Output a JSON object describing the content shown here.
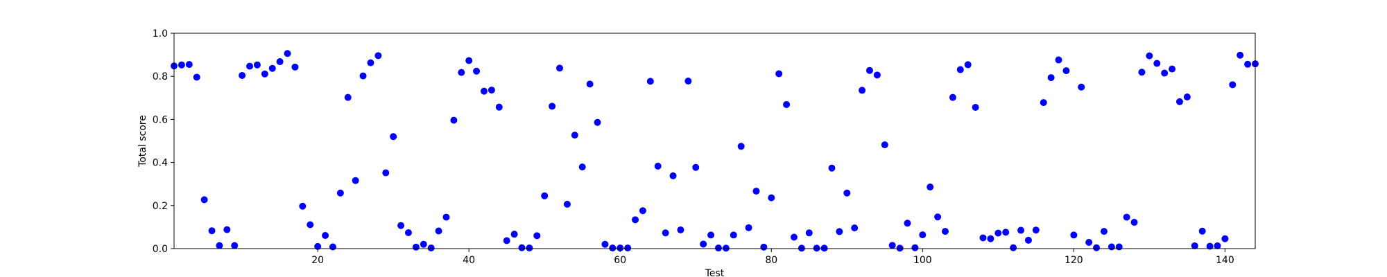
{
  "chart_data": {
    "type": "scatter",
    "title": "",
    "xlabel": "Test",
    "ylabel": "Total score",
    "xlim": [
      1,
      144
    ],
    "ylim": [
      0.0,
      1.0
    ],
    "x_ticks": [
      20,
      40,
      60,
      80,
      100,
      120,
      140
    ],
    "y_ticks": [
      0.0,
      0.2,
      0.4,
      0.6,
      0.8,
      1.0
    ],
    "x_tick_labels": [
      "20",
      "40",
      "60",
      "80",
      "100",
      "120",
      "140"
    ],
    "y_tick_labels": [
      "0.0",
      "0.2",
      "0.4",
      "0.6",
      "0.8",
      "1.0"
    ],
    "grid": false,
    "marker_color": "#0000ff",
    "series": [
      {
        "x": [
          1,
          2,
          3,
          4,
          5,
          6,
          7,
          8,
          9,
          10,
          11,
          12,
          13,
          14,
          15,
          16,
          17,
          18,
          19,
          20,
          21,
          22,
          23,
          24,
          25,
          26,
          27,
          28,
          29,
          30,
          31,
          32,
          33,
          34,
          35,
          36,
          37,
          38,
          39,
          40,
          41,
          42,
          43,
          44,
          45,
          46,
          47,
          48,
          49,
          50,
          51,
          52,
          53,
          54,
          55,
          56,
          57,
          58,
          59,
          60,
          61,
          62,
          63,
          64,
          65,
          66,
          67,
          68,
          69,
          70,
          71,
          72,
          73,
          74,
          75,
          76,
          77,
          78,
          79,
          80,
          81,
          82,
          83,
          84,
          85,
          86,
          87,
          88,
          89,
          90,
          91,
          92,
          93,
          94,
          95,
          96,
          97,
          98,
          99,
          100,
          101,
          102,
          103,
          104,
          105,
          106,
          107,
          108,
          109,
          110,
          111,
          112,
          113,
          114,
          115,
          116,
          117,
          118,
          119,
          120,
          121,
          122,
          123,
          124,
          125,
          126,
          127,
          128,
          129,
          130,
          131,
          132,
          133,
          134,
          135,
          136,
          137,
          138,
          139,
          140,
          141,
          142,
          143,
          144
        ],
        "y": [
          0.848,
          0.853,
          0.855,
          0.796,
          0.227,
          0.083,
          0.014,
          0.088,
          0.014,
          0.804,
          0.847,
          0.853,
          0.811,
          0.837,
          0.868,
          0.906,
          0.843,
          0.197,
          0.111,
          0.01,
          0.061,
          0.008,
          0.258,
          0.702,
          0.316,
          0.802,
          0.863,
          0.896,
          0.352,
          0.52,
          0.107,
          0.074,
          0.007,
          0.02,
          0.003,
          0.082,
          0.146,
          0.596,
          0.818,
          0.873,
          0.824,
          0.731,
          0.736,
          0.657,
          0.037,
          0.067,
          0.004,
          0.003,
          0.06,
          0.245,
          0.661,
          0.838,
          0.206,
          0.527,
          0.379,
          0.764,
          0.586,
          0.02,
          0.003,
          0.003,
          0.003,
          0.134,
          0.176,
          0.777,
          0.383,
          0.073,
          0.338,
          0.087,
          0.778,
          0.377,
          0.021,
          0.063,
          0.003,
          0.002,
          0.063,
          0.475,
          0.097,
          0.267,
          0.007,
          0.236,
          0.812,
          0.669,
          0.053,
          0.002,
          0.073,
          0.002,
          0.002,
          0.374,
          0.079,
          0.258,
          0.096,
          0.735,
          0.827,
          0.806,
          0.482,
          0.015,
          0.002,
          0.118,
          0.004,
          0.064,
          0.286,
          0.147,
          0.08,
          0.702,
          0.831,
          0.854,
          0.656,
          0.05,
          0.046,
          0.072,
          0.076,
          0.004,
          0.085,
          0.039,
          0.086,
          0.678,
          0.794,
          0.876,
          0.826,
          0.063,
          0.75,
          0.029,
          0.004,
          0.08,
          0.008,
          0.008,
          0.146,
          0.122,
          0.819,
          0.895,
          0.86,
          0.815,
          0.834,
          0.682,
          0.704,
          0.013,
          0.081,
          0.011,
          0.013,
          0.046,
          0.761,
          0.898,
          0.856,
          0.858
        ]
      }
    ]
  }
}
